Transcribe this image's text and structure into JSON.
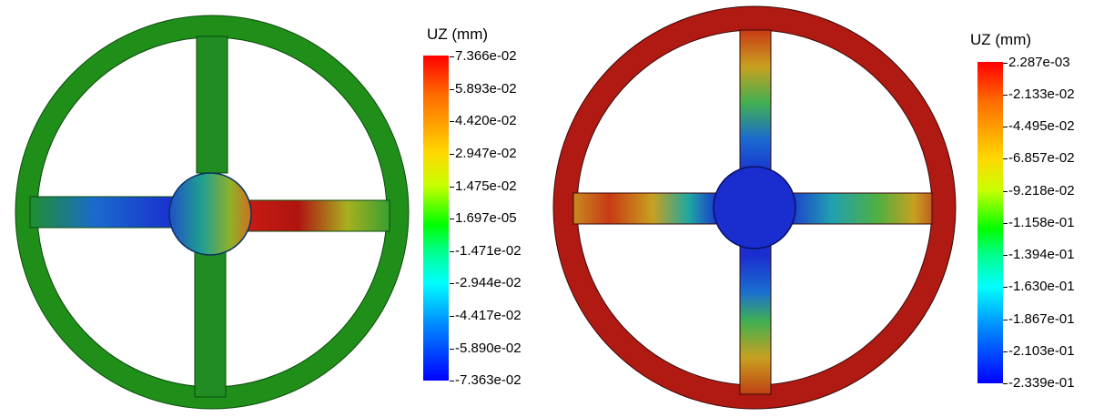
{
  "panels": [
    {
      "legend": {
        "title": "UZ (mm)",
        "ticks": [
          "7.366e-02",
          "5.893e-02",
          "4.420e-02",
          "2.947e-02",
          "1.475e-02",
          "1.697e-05",
          "-1.471e-02",
          "-2.944e-02",
          "-4.417e-02",
          "-5.890e-02",
          "-7.363e-02"
        ]
      },
      "colors": {
        "rim": "#1f8f1a",
        "spokes": "#1f8f1a"
      }
    },
    {
      "legend": {
        "title": "UZ (mm)",
        "ticks": [
          "2.287e-03",
          "-2.133e-02",
          "-4.495e-02",
          "-6.857e-02",
          "-9.218e-02",
          "-1.158e-01",
          "-1.394e-01",
          "-1.630e-01",
          "-1.867e-01",
          "-2.103e-01",
          "-2.339e-01"
        ]
      },
      "colors": {
        "rim": "#b11a12",
        "hub": "#1a2ed0"
      }
    }
  ]
}
